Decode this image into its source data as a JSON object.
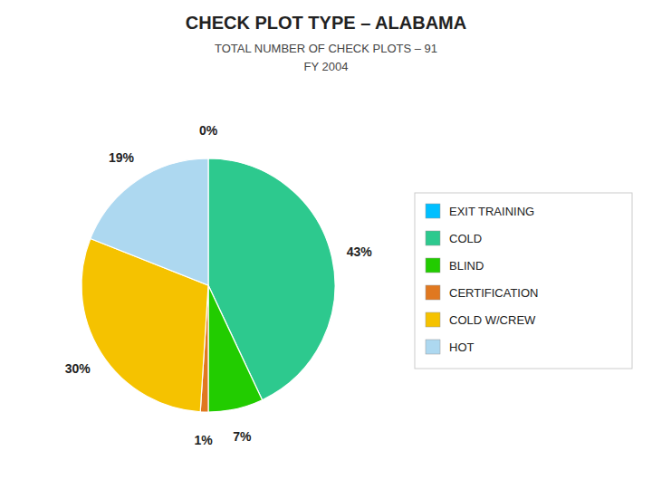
{
  "chart_data": {
    "type": "pie",
    "title": "CHECK PLOT TYPE – ALABAMA",
    "subtitle": [
      "TOTAL NUMBER OF CHECK PLOTS – 91",
      "FY 2004"
    ],
    "categories": [
      "EXIT TRAINING",
      "COLD",
      "BLIND",
      "CERTIFICATION",
      "COLD W/CREW",
      "HOT"
    ],
    "values": [
      0,
      43,
      7,
      1,
      30,
      19
    ],
    "value_labels": [
      "0%",
      "43%",
      "7%",
      "1%",
      "30%",
      "19%"
    ],
    "colors": [
      "#00BFFF",
      "#2DC98E",
      "#22CC00",
      "#E07820",
      "#F5C200",
      "#ADD8F0"
    ],
    "data_labels": true,
    "legend": "right"
  }
}
